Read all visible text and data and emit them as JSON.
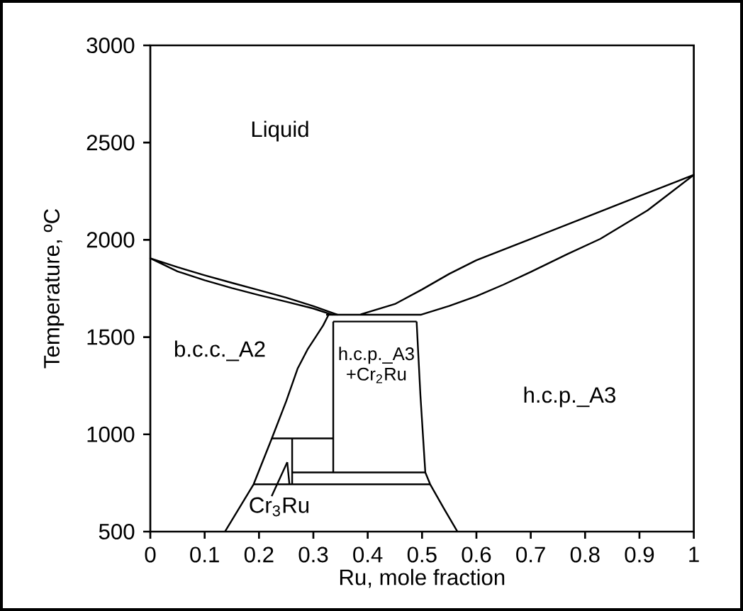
{
  "chart_data": {
    "type": "line",
    "xlabel": "Ru, mole fraction",
    "ylabel": "Temperature, ºC",
    "xlim": [
      0,
      1
    ],
    "ylim": [
      500,
      3000
    ],
    "xticks": [
      0,
      0.1,
      0.2,
      0.3,
      0.4,
      0.5,
      0.6,
      0.7,
      0.8,
      0.9,
      1
    ],
    "yticks": [
      500,
      1000,
      1500,
      2000,
      2500,
      3000
    ],
    "series": [
      {
        "color": "#000000",
        "x": [
          0.345,
          0.3,
          0.25,
          0.2,
          0.15,
          0.1,
          0.05,
          0,
          0.05,
          0.1,
          0.15,
          0.2,
          0.25,
          0.3,
          0.335
        ],
        "values": [
          1615,
          1659,
          1703,
          1741,
          1779,
          1818,
          1860,
          1905,
          1838,
          1792,
          1752,
          1716,
          1682,
          1647,
          1615
        ]
      },
      {
        "color": "#000000",
        "x": [
          0.3235,
          0.385,
          0.45,
          0.5,
          0.55,
          0.6,
          0.7,
          0.8,
          0.9,
          1,
          0.915,
          0.828,
          0.767,
          0.7,
          0.65,
          0.6,
          0.55,
          0.4975,
          0.385
        ],
        "values": [
          1615,
          1615,
          1670,
          1745,
          1825,
          1895,
          2005,
          2115,
          2225,
          2334,
          2152,
          2005,
          1926,
          1835,
          1770,
          1710,
          1660,
          1615,
          1615
        ]
      },
      {
        "color": "#000000",
        "x": [
          0.3366,
          0.49
        ],
        "values": [
          1580,
          1580
        ]
      },
      {
        "color": "#000000",
        "x": [
          0.3366,
          0.3366
        ],
        "values": [
          1580,
          804
        ]
      },
      {
        "color": "#000000",
        "x": [
          0.49,
          0.497,
          0.506,
          0.515,
          0.54,
          0.565
        ],
        "values": [
          1580,
          1200,
          804,
          743,
          620,
          500
        ]
      },
      {
        "color": "#000000",
        "x": [
          0.261,
          0.506
        ],
        "values": [
          804,
          804
        ]
      },
      {
        "color": "#000000",
        "x": [
          0.19,
          0.515
        ],
        "values": [
          743,
          743
        ]
      },
      {
        "color": "#000000",
        "x": [
          0.2236,
          0.3366
        ],
        "values": [
          979,
          979
        ]
      },
      {
        "color": "#000000",
        "x": [
          0.261,
          0.261
        ],
        "values": [
          979,
          743
        ]
      },
      {
        "color": "#000000",
        "x": [
          0.252,
          0.256
        ],
        "values": [
          857,
          743
        ]
      },
      {
        "color": "#000000",
        "x": [
          0.1375,
          0.19,
          0.2236,
          0.25,
          0.271,
          0.29,
          0.306,
          0.318,
          0.328
        ],
        "values": [
          500,
          743,
          979,
          1170,
          1338,
          1440,
          1508,
          1560,
          1615
        ]
      }
    ],
    "annotations": [
      "Liquid",
      "b.c.c._A2",
      "h.c.p._A3 +Cr$_{2}$Ru",
      "h.c.p._A3",
      {
        "text": "Cr$_{3}$Ru",
        "x": 0.252,
        "y": 857
      }
    ]
  }
}
